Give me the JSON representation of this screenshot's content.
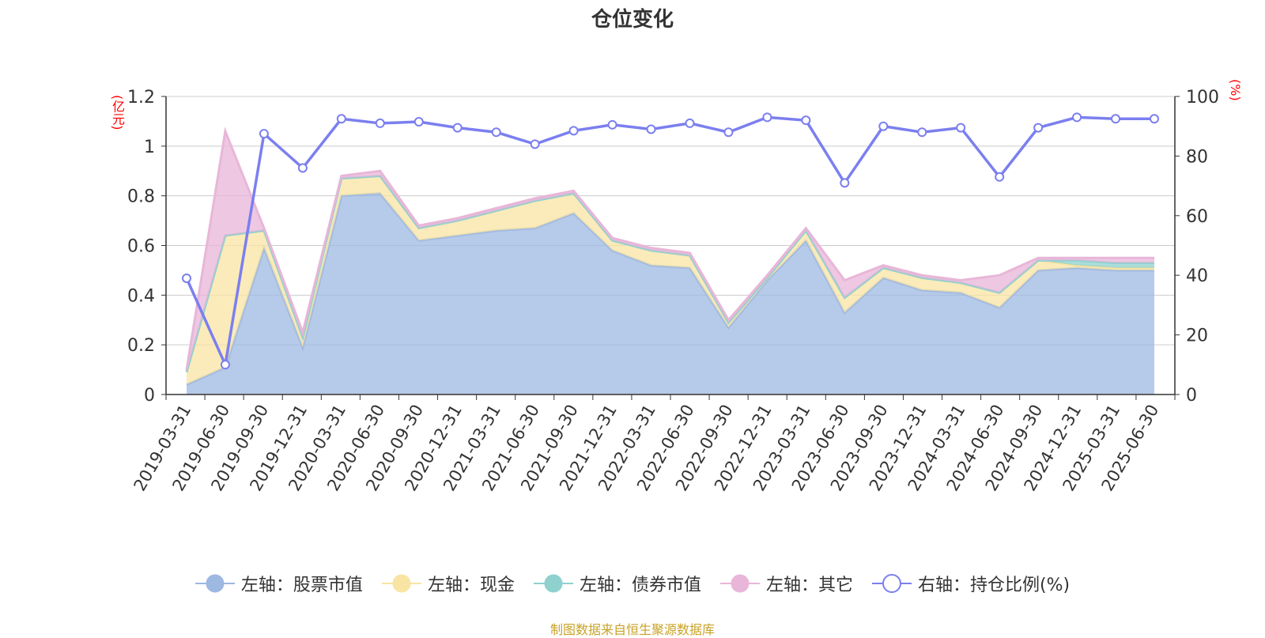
{
  "chart_data": {
    "type": "area",
    "title": "仓位变化",
    "left_axis_unit": "(亿元)",
    "right_axis_unit": "(%)",
    "left_ylim": [
      0,
      1.2
    ],
    "left_yticks": [
      "0",
      "0.2",
      "0.4",
      "0.6",
      "0.8",
      "1",
      "1.2"
    ],
    "right_ylim": [
      0,
      100
    ],
    "right_yticks": [
      "0",
      "20",
      "40",
      "60",
      "80",
      "100"
    ],
    "categories": [
      "2019-03-31",
      "2019-06-30",
      "2019-09-30",
      "2019-12-31",
      "2020-03-31",
      "2020-06-30",
      "2020-09-30",
      "2020-12-31",
      "2021-03-31",
      "2021-06-30",
      "2021-09-30",
      "2021-12-31",
      "2022-03-31",
      "2022-06-30",
      "2022-09-30",
      "2022-12-31",
      "2023-03-31",
      "2023-06-30",
      "2023-09-30",
      "2023-12-31",
      "2024-03-31",
      "2024-06-30",
      "2024-09-30",
      "2024-12-31",
      "2025-03-31",
      "2025-06-30"
    ],
    "series": [
      {
        "name": "左轴：股票市值",
        "axis": "left",
        "stack": true,
        "color": "#9db8e1",
        "values": [
          0.04,
          0.11,
          0.59,
          0.19,
          0.8,
          0.81,
          0.62,
          0.64,
          0.66,
          0.67,
          0.73,
          0.58,
          0.52,
          0.51,
          0.27,
          0.46,
          0.62,
          0.33,
          0.47,
          0.42,
          0.41,
          0.35,
          0.5,
          0.51,
          0.5,
          0.5
        ]
      },
      {
        "name": "左轴：现金",
        "axis": "left",
        "stack": true,
        "color": "#f9e4a3",
        "values": [
          0.05,
          0.53,
          0.07,
          0.04,
          0.07,
          0.07,
          0.05,
          0.06,
          0.08,
          0.11,
          0.08,
          0.04,
          0.06,
          0.05,
          0.02,
          0.01,
          0.04,
          0.06,
          0.04,
          0.05,
          0.04,
          0.06,
          0.04,
          0.01,
          0.01,
          0.01
        ]
      },
      {
        "name": "左轴：债券市值",
        "axis": "left",
        "stack": true,
        "color": "#8ed1cf",
        "values": [
          0,
          0,
          0,
          0,
          0,
          0,
          0,
          0,
          0,
          0,
          0,
          0,
          0,
          0,
          0,
          0,
          0,
          0,
          0,
          0,
          0,
          0,
          0,
          0.02,
          0.02,
          0.02
        ]
      },
      {
        "name": "左轴：其它",
        "axis": "left",
        "stack": true,
        "color": "#e8b6d8",
        "values": [
          0.01,
          0.42,
          0.01,
          0.02,
          0.01,
          0.02,
          0.01,
          0.01,
          0.01,
          0.01,
          0.01,
          0.01,
          0.01,
          0.01,
          0.01,
          0.01,
          0.01,
          0.07,
          0.01,
          0.01,
          0.01,
          0.07,
          0.01,
          0.01,
          0.02,
          0.02
        ]
      },
      {
        "name": "右轴：持仓比例(%)",
        "axis": "right",
        "stack": false,
        "color": "#7b7fef",
        "values": [
          39,
          10,
          87.5,
          76,
          92.5,
          91,
          91.5,
          89.5,
          88,
          84,
          88.5,
          90.5,
          89,
          91,
          88,
          93,
          92,
          71,
          90,
          88,
          89.5,
          73,
          89.5,
          93,
          92.5,
          92.5
        ]
      }
    ],
    "legend_position": "bottom-center",
    "grid": true
  },
  "footer": {
    "source": "制图数据来自恒生聚源数据库"
  }
}
